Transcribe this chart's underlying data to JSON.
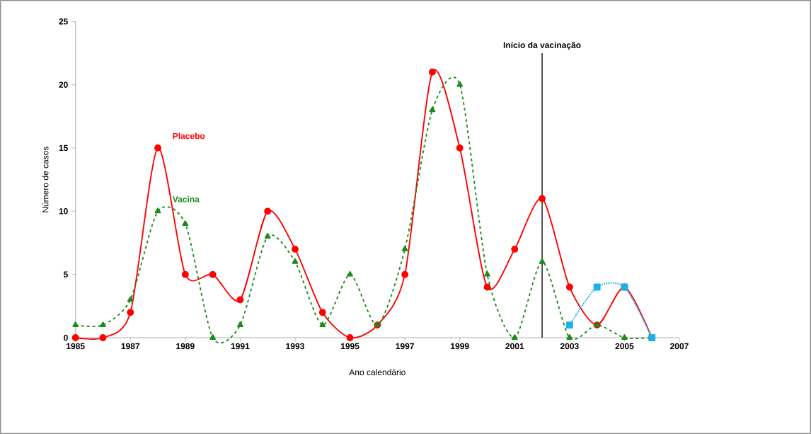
{
  "chart_data": {
    "type": "line",
    "xlabel": "Ano calendário",
    "ylabel": "Número de casos",
    "x": [
      1985,
      1986,
      1987,
      1988,
      1989,
      1990,
      1991,
      1992,
      1993,
      1994,
      1995,
      1996,
      1997,
      1998,
      1999,
      2000,
      2001,
      2002,
      2003,
      2004,
      2005,
      2006
    ],
    "series": [
      {
        "name": "Placebo",
        "color": "#ff0000",
        "marker": "circle",
        "line_style": "solid",
        "values": [
          0,
          0,
          2,
          15,
          5,
          5,
          3,
          10,
          7,
          2,
          0,
          1,
          5,
          21,
          15,
          4,
          7,
          11,
          4,
          1,
          4,
          0
        ]
      },
      {
        "name": "Vacina",
        "color": "#1a8c1a",
        "marker": "triangle",
        "line_style": "dashed",
        "values": [
          1,
          1,
          3,
          10,
          9,
          0,
          1,
          8,
          6,
          1,
          5,
          1,
          7,
          18,
          20,
          5,
          0,
          6,
          0,
          1,
          0,
          0
        ]
      },
      {
        "color": "#1ab0e8",
        "marker": "square",
        "line_style": "dotted",
        "x": [
          2003,
          2004,
          2005,
          2006
        ],
        "values": [
          1,
          4,
          4,
          0
        ]
      }
    ],
    "xlim": [
      1985,
      2007
    ],
    "ylim": [
      0,
      25
    ],
    "xticks": [
      1985,
      1987,
      1989,
      1991,
      1993,
      1995,
      1997,
      1999,
      2001,
      2003,
      2005,
      2007
    ],
    "yticks": [
      0,
      5,
      10,
      15,
      20,
      25
    ],
    "ref_lines": [
      {
        "axis": "x",
        "value": 2002,
        "label": "Início da vacinação",
        "color": "#000000"
      }
    ],
    "grid": false
  }
}
